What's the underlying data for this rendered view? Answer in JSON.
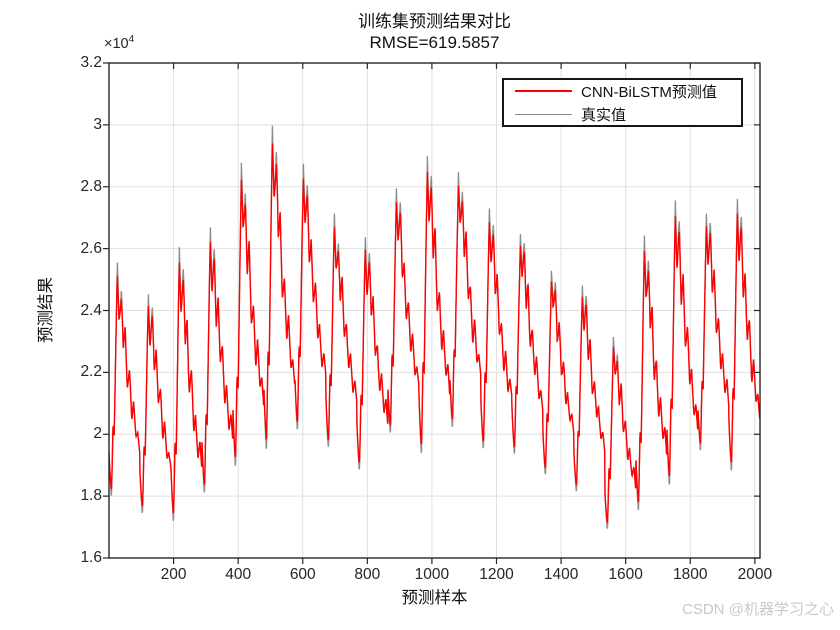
{
  "watermark": {
    "text": "CSDN @机器学习之心",
    "color": "#c9c9c9"
  },
  "chart_data": {
    "type": "line",
    "title": "训练集预测结果对比",
    "subtitle": "RMSE=619.5857",
    "rmse": 619.5857,
    "xlabel": "预测样本",
    "ylabel": "预测结果",
    "y_exponent": {
      "base": "×10",
      "power": "4"
    },
    "xlim": [
      0,
      2016
    ],
    "ylim": [
      16000,
      32000
    ],
    "grid": true,
    "legend_position": "northeast-inside",
    "x_ticks": [
      200,
      400,
      600,
      800,
      1000,
      1200,
      1400,
      1600,
      1800,
      2000
    ],
    "y_ticks": [
      {
        "value": 16000,
        "label": "1.6"
      },
      {
        "value": 18000,
        "label": "1.8"
      },
      {
        "value": 20000,
        "label": "2"
      },
      {
        "value": 22000,
        "label": "2.2"
      },
      {
        "value": 24000,
        "label": "2.4"
      },
      {
        "value": 26000,
        "label": "2.6"
      },
      {
        "value": 28000,
        "label": "2.8"
      },
      {
        "value": 30000,
        "label": "3"
      },
      {
        "value": 32000,
        "label": "3.2"
      }
    ],
    "series": [
      {
        "name": "CNN-BiLSTM预测值",
        "color": "#ff0000",
        "line_width": 1.4,
        "legend_line_width": 2.6,
        "role": "prediction"
      },
      {
        "name": "真实值",
        "color": "#8c8c8c",
        "line_width": 1.3,
        "legend_line_width": 1.5,
        "role": "actual"
      }
    ],
    "colors": {
      "axis": "#262626",
      "grid": "#e0e0e0",
      "tick_text": "#262626",
      "background": "#ffffff"
    },
    "generator": {
      "samples": 2016,
      "samples_per_day": 96,
      "seed": 11,
      "noise_step": 6,
      "noise_amp": 300,
      "peak_undershoot": 0.22,
      "trough_overshoot": 0.2,
      "shape": [
        [
          0.0,
          0.2
        ],
        [
          0.04,
          0.08
        ],
        [
          0.08,
          0.0
        ],
        [
          0.13,
          0.32
        ],
        [
          0.165,
          0.26
        ],
        [
          0.27,
          1.0
        ],
        [
          0.325,
          0.78
        ],
        [
          0.4,
          0.93
        ],
        [
          0.46,
          0.64
        ],
        [
          0.52,
          0.74
        ],
        [
          0.59,
          0.48
        ],
        [
          0.66,
          0.55
        ],
        [
          0.735,
          0.34
        ],
        [
          0.79,
          0.42
        ],
        [
          0.87,
          0.26
        ],
        [
          0.93,
          0.3
        ],
        [
          1.0,
          0.2
        ]
      ],
      "daily_envelope": [
        {
          "peak": 25400,
          "trough": 17900
        },
        {
          "peak": 24600,
          "trough": 17400
        },
        {
          "peak": 26000,
          "trough": 17000
        },
        {
          "peak": 26700,
          "trough": 18000
        },
        {
          "peak": 28800,
          "trough": 18800
        },
        {
          "peak": 30100,
          "trough": 19300
        },
        {
          "peak": 28700,
          "trough": 20000
        },
        {
          "peak": 27000,
          "trough": 19500
        },
        {
          "peak": 26400,
          "trough": 18800
        },
        {
          "peak": 27800,
          "trough": 20000
        },
        {
          "peak": 29100,
          "trough": 19300
        },
        {
          "peak": 28600,
          "trough": 20200
        },
        {
          "peak": 27200,
          "trough": 19500
        },
        {
          "peak": 26700,
          "trough": 19200
        },
        {
          "peak": 25400,
          "trough": 18700
        },
        {
          "peak": 24800,
          "trough": 18100
        },
        {
          "peak": 23300,
          "trough": 16900
        },
        {
          "peak": 26400,
          "trough": 17400
        },
        {
          "peak": 27600,
          "trough": 18300
        },
        {
          "peak": 27300,
          "trough": 19300
        },
        {
          "peak": 27700,
          "trough": 18700
        }
      ]
    }
  }
}
